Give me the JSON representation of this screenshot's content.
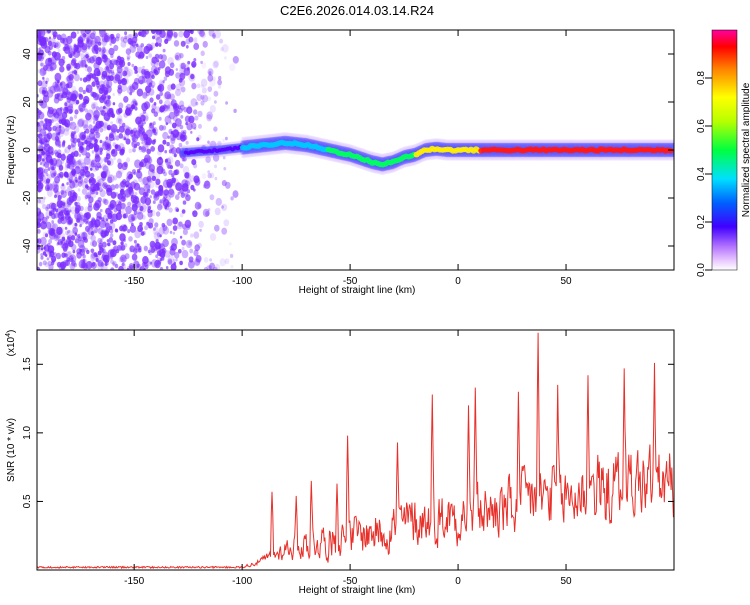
{
  "title": "C2E6.2026.014.03.14.R24",
  "colors": {
    "snr_line": "#e8302a",
    "axis": "#000000",
    "ridge_hot": "#ff1a1a",
    "noise": "#7a2cff"
  },
  "chart_data": [
    {
      "type": "heatmap",
      "name": "spectrogram",
      "xlabel": "Height of straight line (km)",
      "ylabel": "Frequency (Hz)",
      "xlim": [
        -195,
        100
      ],
      "ylim": [
        -50,
        50
      ],
      "xticks": [
        -150,
        -100,
        -50,
        0,
        50
      ],
      "yticks": [
        -40,
        -20,
        0,
        20,
        40
      ],
      "xtick_labels": [
        "-150",
        "-100",
        "-50",
        "0",
        "50"
      ],
      "ytick_labels": [
        "-40",
        "-20",
        "0",
        "20",
        "40"
      ],
      "ridge": {
        "x": [
          -125,
          -110,
          -100,
          -90,
          -80,
          -70,
          -60,
          -50,
          -40,
          -35,
          -30,
          -25,
          -20,
          -15,
          -10,
          -5,
          0,
          10,
          20,
          40,
          60,
          80,
          100
        ],
        "freq": [
          -1,
          0,
          1,
          2,
          3,
          2,
          0,
          -2,
          -5,
          -6,
          -5,
          -3,
          -2,
          0,
          0.5,
          0,
          0,
          0,
          0,
          0,
          0,
          0,
          0
        ]
      },
      "colorbar": {
        "label": "Normalized spectral amplitude",
        "range": [
          0,
          1
        ],
        "ticks": [
          0.0,
          0.2,
          0.4,
          0.6,
          0.8
        ],
        "tick_labels": [
          "0.0",
          "0.2",
          "0.4",
          "0.6",
          "0.8"
        ]
      }
    },
    {
      "type": "line",
      "name": "snr",
      "xlabel": "Height of straight line (km)",
      "ylabel": "SNR (10 * v/v)",
      "scale_label": "(x10",
      "scale_exp": "4",
      "scale_close": ")",
      "xlim": [
        -195,
        100
      ],
      "ylim": [
        0,
        1.75
      ],
      "xticks": [
        -150,
        -100,
        -50,
        0,
        50
      ],
      "yticks": [
        0.5,
        1.0,
        1.5
      ],
      "xtick_labels": [
        "-150",
        "-100",
        "-50",
        "0",
        "50"
      ],
      "ytick_labels": [
        "0.5",
        "1.0",
        "1.5"
      ],
      "envelope": {
        "x": [
          -195,
          -120,
          -100,
          -92,
          -85,
          -80,
          -70,
          -60,
          -50,
          -40,
          -30,
          -20,
          -10,
          0,
          10,
          20,
          30,
          35,
          40,
          50,
          60,
          70,
          80,
          90,
          100
        ],
        "base": [
          0.02,
          0.02,
          0.02,
          0.06,
          0.1,
          0.15,
          0.18,
          0.2,
          0.22,
          0.25,
          0.3,
          0.33,
          0.35,
          0.38,
          0.4,
          0.4,
          0.45,
          0.5,
          0.5,
          0.48,
          0.55,
          0.55,
          0.6,
          0.6,
          0.55
        ],
        "spread": [
          0.01,
          0.01,
          0.02,
          0.08,
          0.18,
          0.28,
          0.4,
          0.45,
          0.5,
          0.55,
          0.6,
          0.65,
          0.65,
          0.7,
          0.7,
          0.75,
          0.8,
          0.9,
          0.8,
          0.8,
          0.9,
          0.9,
          0.9,
          0.9,
          0.8
        ]
      },
      "peaks": [
        {
          "x": -86,
          "y": 0.57
        },
        {
          "x": -75,
          "y": 0.54
        },
        {
          "x": -68,
          "y": 0.65
        },
        {
          "x": -56,
          "y": 0.63
        },
        {
          "x": -51,
          "y": 0.98
        },
        {
          "x": -28,
          "y": 0.93
        },
        {
          "x": -12,
          "y": 1.28
        },
        {
          "x": 5,
          "y": 1.2
        },
        {
          "x": 8,
          "y": 1.33
        },
        {
          "x": 28,
          "y": 1.3
        },
        {
          "x": 37,
          "y": 1.73
        },
        {
          "x": 46,
          "y": 1.35
        },
        {
          "x": 60,
          "y": 1.42
        },
        {
          "x": 77,
          "y": 1.47
        },
        {
          "x": 91,
          "y": 1.51
        },
        {
          "x": 98,
          "y": 0.85
        }
      ]
    }
  ]
}
